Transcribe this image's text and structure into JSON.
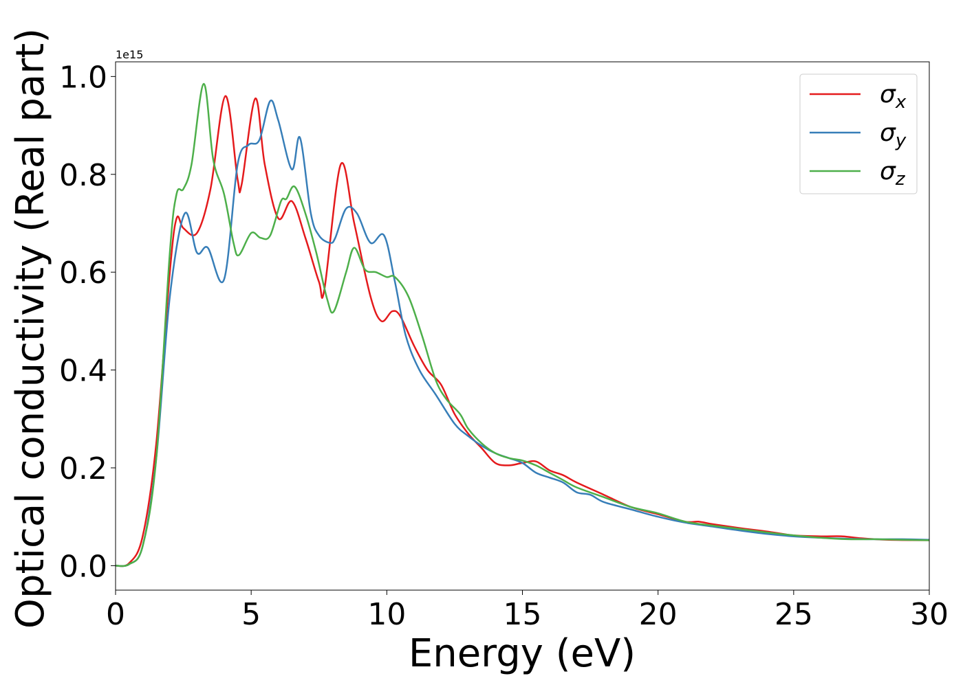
{
  "chart_data": {
    "type": "line",
    "xlabel": "Energy (eV)",
    "ylabel": "Optical conductivity (Real part)",
    "y_offset_text": "1e15",
    "y_scale": 1000000000000000.0,
    "xlim": [
      0,
      30
    ],
    "ylim": [
      -0.05,
      1.03
    ],
    "xticks": [
      0,
      5,
      10,
      15,
      20,
      25,
      30
    ],
    "xtick_labels": [
      "0",
      "5",
      "10",
      "15",
      "20",
      "25",
      "30"
    ],
    "yticks": [
      0.0,
      0.2,
      0.4,
      0.6,
      0.8,
      1.0
    ],
    "ytick_labels": [
      "0.0",
      "0.2",
      "0.4",
      "0.6",
      "0.8",
      "1.0"
    ],
    "grid": false,
    "legend_position": "top-right",
    "series": [
      {
        "name": "σx",
        "symbol": "σ",
        "subscript": "x",
        "color": "#e41a1c",
        "points": [
          [
            0,
            0
          ],
          [
            0.5,
            0.005
          ],
          [
            1.0,
            0.06
          ],
          [
            1.5,
            0.25
          ],
          [
            2.0,
            0.6
          ],
          [
            2.25,
            0.71
          ],
          [
            2.5,
            0.69
          ],
          [
            3.0,
            0.68
          ],
          [
            3.5,
            0.77
          ],
          [
            4.05,
            0.96
          ],
          [
            4.5,
            0.79
          ],
          [
            4.65,
            0.78
          ],
          [
            5.15,
            0.955
          ],
          [
            5.5,
            0.82
          ],
          [
            6.0,
            0.71
          ],
          [
            6.5,
            0.745
          ],
          [
            7.0,
            0.67
          ],
          [
            7.5,
            0.58
          ],
          [
            7.7,
            0.565
          ],
          [
            8.3,
            0.82
          ],
          [
            8.8,
            0.7
          ],
          [
            9.4,
            0.55
          ],
          [
            9.8,
            0.5
          ],
          [
            10.2,
            0.52
          ],
          [
            10.5,
            0.51
          ],
          [
            11.0,
            0.45
          ],
          [
            11.5,
            0.4
          ],
          [
            12.0,
            0.37
          ],
          [
            12.5,
            0.31
          ],
          [
            13.0,
            0.27
          ],
          [
            13.5,
            0.24
          ],
          [
            14.0,
            0.21
          ],
          [
            14.5,
            0.205
          ],
          [
            15.0,
            0.21
          ],
          [
            15.5,
            0.213
          ],
          [
            16.0,
            0.195
          ],
          [
            16.5,
            0.185
          ],
          [
            17.0,
            0.17
          ],
          [
            18.0,
            0.145
          ],
          [
            19.0,
            0.12
          ],
          [
            20.0,
            0.105
          ],
          [
            21.0,
            0.09
          ],
          [
            21.5,
            0.09
          ],
          [
            22.0,
            0.085
          ],
          [
            23.0,
            0.077
          ],
          [
            24.0,
            0.07
          ],
          [
            25.0,
            0.062
          ],
          [
            26.0,
            0.06
          ],
          [
            26.8,
            0.06
          ],
          [
            27.5,
            0.056
          ],
          [
            28.5,
            0.053
          ],
          [
            30.0,
            0.052
          ]
        ]
      },
      {
        "name": "σy",
        "symbol": "σ",
        "subscript": "y",
        "color": "#377eb8",
        "points": [
          [
            0,
            0
          ],
          [
            0.5,
            0.003
          ],
          [
            1.0,
            0.04
          ],
          [
            1.5,
            0.22
          ],
          [
            2.0,
            0.55
          ],
          [
            2.55,
            0.72
          ],
          [
            3.0,
            0.64
          ],
          [
            3.4,
            0.65
          ],
          [
            4.0,
            0.585
          ],
          [
            4.5,
            0.82
          ],
          [
            4.9,
            0.86
          ],
          [
            5.3,
            0.87
          ],
          [
            5.7,
            0.95
          ],
          [
            6.0,
            0.91
          ],
          [
            6.5,
            0.81
          ],
          [
            6.8,
            0.875
          ],
          [
            7.2,
            0.72
          ],
          [
            7.5,
            0.675
          ],
          [
            7.9,
            0.66
          ],
          [
            8.1,
            0.67
          ],
          [
            8.5,
            0.73
          ],
          [
            8.9,
            0.72
          ],
          [
            9.4,
            0.66
          ],
          [
            9.9,
            0.675
          ],
          [
            10.3,
            0.58
          ],
          [
            10.7,
            0.47
          ],
          [
            11.2,
            0.4
          ],
          [
            11.8,
            0.35
          ],
          [
            12.5,
            0.29
          ],
          [
            13.0,
            0.265
          ],
          [
            13.5,
            0.245
          ],
          [
            14.0,
            0.23
          ],
          [
            14.5,
            0.22
          ],
          [
            15.0,
            0.21
          ],
          [
            15.5,
            0.19
          ],
          [
            16.0,
            0.18
          ],
          [
            16.5,
            0.17
          ],
          [
            17.0,
            0.15
          ],
          [
            17.5,
            0.145
          ],
          [
            18.0,
            0.13
          ],
          [
            19.0,
            0.115
          ],
          [
            20.0,
            0.1
          ],
          [
            21.0,
            0.088
          ],
          [
            22.0,
            0.08
          ],
          [
            23.0,
            0.072
          ],
          [
            24.0,
            0.065
          ],
          [
            25.0,
            0.06
          ],
          [
            26.0,
            0.057
          ],
          [
            27.0,
            0.055
          ],
          [
            28.0,
            0.054
          ],
          [
            29.0,
            0.054
          ],
          [
            30.0,
            0.053
          ]
        ]
      },
      {
        "name": "σz",
        "symbol": "σ",
        "subscript": "z",
        "color": "#4daf4a",
        "points": [
          [
            0,
            0
          ],
          [
            0.5,
            0.003
          ],
          [
            1.0,
            0.04
          ],
          [
            1.5,
            0.22
          ],
          [
            2.0,
            0.64
          ],
          [
            2.25,
            0.76
          ],
          [
            2.5,
            0.77
          ],
          [
            2.8,
            0.82
          ],
          [
            3.25,
            0.985
          ],
          [
            3.6,
            0.83
          ],
          [
            4.0,
            0.76
          ],
          [
            4.35,
            0.66
          ],
          [
            4.55,
            0.635
          ],
          [
            5.0,
            0.68
          ],
          [
            5.35,
            0.67
          ],
          [
            5.7,
            0.675
          ],
          [
            6.1,
            0.745
          ],
          [
            6.3,
            0.75
          ],
          [
            6.6,
            0.775
          ],
          [
            7.0,
            0.72
          ],
          [
            7.4,
            0.64
          ],
          [
            7.8,
            0.545
          ],
          [
            8.05,
            0.52
          ],
          [
            8.5,
            0.6
          ],
          [
            8.8,
            0.65
          ],
          [
            9.2,
            0.605
          ],
          [
            9.6,
            0.6
          ],
          [
            10.0,
            0.59
          ],
          [
            10.3,
            0.59
          ],
          [
            10.8,
            0.55
          ],
          [
            11.3,
            0.47
          ],
          [
            11.8,
            0.38
          ],
          [
            12.2,
            0.34
          ],
          [
            12.7,
            0.31
          ],
          [
            13.0,
            0.28
          ],
          [
            13.5,
            0.25
          ],
          [
            14.0,
            0.23
          ],
          [
            14.5,
            0.22
          ],
          [
            15.0,
            0.215
          ],
          [
            15.5,
            0.205
          ],
          [
            16.0,
            0.19
          ],
          [
            16.5,
            0.175
          ],
          [
            17.0,
            0.16
          ],
          [
            18.0,
            0.14
          ],
          [
            19.0,
            0.12
          ],
          [
            20.0,
            0.107
          ],
          [
            21.0,
            0.09
          ],
          [
            22.0,
            0.082
          ],
          [
            23.0,
            0.075
          ],
          [
            24.0,
            0.068
          ],
          [
            25.0,
            0.062
          ],
          [
            26.0,
            0.057
          ],
          [
            27.0,
            0.054
          ],
          [
            28.0,
            0.054
          ],
          [
            29.0,
            0.053
          ],
          [
            30.0,
            0.052
          ]
        ]
      }
    ]
  }
}
